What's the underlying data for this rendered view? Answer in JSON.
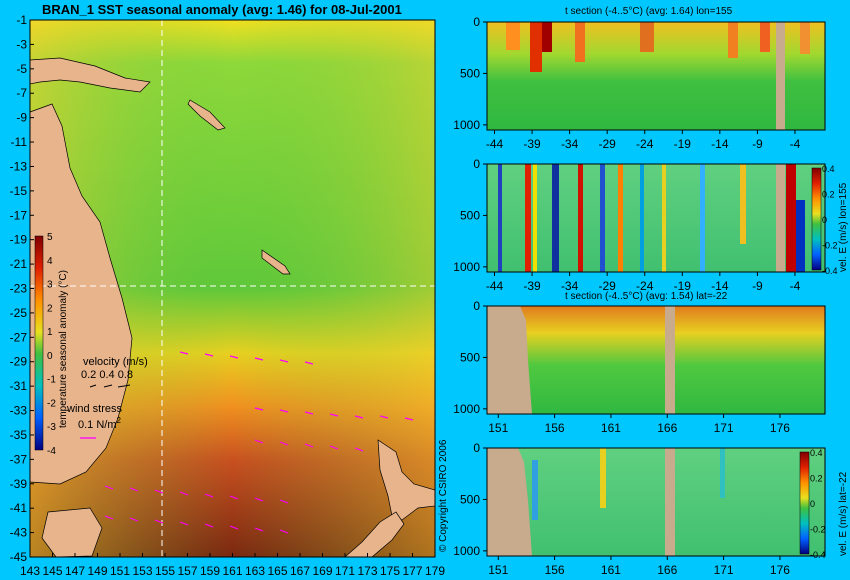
{
  "main_map": {
    "title": "BRAN_1  SST seasonal anomaly (avg: 1.46) for 08-Jul-2001",
    "lat_ticks": [
      "-1",
      "-3",
      "-5",
      "-7",
      "-9",
      "-11",
      "-13",
      "-15",
      "-17",
      "-19",
      "-21",
      "-23",
      "-25",
      "-27",
      "-29",
      "-31",
      "-33",
      "-35",
      "-37",
      "-39",
      "-41",
      "-43",
      "-45"
    ],
    "lon_ticks": [
      "143",
      "145",
      "147",
      "149",
      "151",
      "153",
      "155",
      "157",
      "159",
      "161",
      "163",
      "165",
      "167",
      "169",
      "171",
      "173",
      "175",
      "177",
      "179"
    ],
    "colorbar_ticks": [
      "5",
      "4",
      "3",
      "2",
      "1",
      "0",
      "-1",
      "-2",
      "-3",
      "-4"
    ],
    "colorbar_label": "temperature seasonal anomaly (°C)",
    "velocity_label": "velocity (m/s)",
    "velocity_scale": "0.2 0.4 0.8",
    "wind_label": "wind stress",
    "wind_scale": "0.1 N/m",
    "wind_scale_sup": "2",
    "copyright": "© Copyright CSIRO 2006"
  },
  "panels": {
    "p1": {
      "title": "t section (-4..5°C) (avg: 1.64) lon=155",
      "x_ticks": [
        "-44",
        "-39",
        "-34",
        "-29",
        "-24",
        "-19",
        "-14",
        "-9",
        "-4"
      ],
      "y_ticks": [
        "0",
        "500",
        "1000"
      ]
    },
    "p2": {
      "title": "",
      "x_ticks": [
        "-44",
        "-39",
        "-34",
        "-29",
        "-24",
        "-19",
        "-14",
        "-9",
        "-4"
      ],
      "y_ticks": [
        "0",
        "500",
        "1000"
      ],
      "cb_label": "vel. E (m/s) lon=155",
      "cb_ticks": [
        "0.4",
        "0.2",
        "0",
        "-0.2",
        "-0.4"
      ]
    },
    "p3": {
      "title": "t section (-4..5°C) (avg: 1.54) lat=-22",
      "x_ticks": [
        "151",
        "156",
        "161",
        "166",
        "171",
        "176"
      ],
      "y_ticks": [
        "0",
        "500",
        "1000"
      ]
    },
    "p4": {
      "title": "",
      "x_ticks": [
        "151",
        "156",
        "161",
        "166",
        "171",
        "176"
      ],
      "y_ticks": [
        "0",
        "500",
        "1000"
      ],
      "cb_label": "vel. E (m/s) lat=-22",
      "cb_ticks": [
        "0.4",
        "0.2",
        "0",
        "-0.2",
        "-0.4"
      ]
    }
  },
  "colors": {
    "background": "#00c8ff",
    "land": "#e8b48c",
    "section_land": "#c8aa8c",
    "marker": "#ffffff",
    "vector": "#ff00ff"
  },
  "chart_data": [
    {
      "type": "heatmap",
      "title": "BRAN_1  SST seasonal anomaly (avg: 1.46) for 08-Jul-2001",
      "variable": "temperature seasonal anomaly (°C)",
      "xlabel": "",
      "ylabel": "",
      "xlim": [
        143,
        179
      ],
      "ylim": [
        -45,
        -1
      ],
      "clim": [
        -4,
        5
      ],
      "average": 1.46,
      "date": "08-Jul-2001",
      "section_markers": {
        "lon": 155,
        "lat": -22
      }
    },
    {
      "type": "heatmap",
      "title": "t section (-4..5°C) (avg: 1.64) lon=155",
      "xlim": [
        -45,
        0
      ],
      "ylim": [
        1050,
        0
      ],
      "clim": [
        -4,
        5
      ],
      "average": 1.64
    },
    {
      "type": "heatmap",
      "title": "",
      "variable": "vel. E (m/s) lon=155",
      "xlim": [
        -45,
        0
      ],
      "ylim": [
        1050,
        0
      ],
      "clim": [
        -0.4,
        0.4
      ]
    },
    {
      "type": "heatmap",
      "title": "t section (-4..5°C) (avg: 1.54) lat=-22",
      "xlim": [
        150,
        180
      ],
      "ylim": [
        1050,
        0
      ],
      "clim": [
        -4,
        5
      ],
      "average": 1.54
    },
    {
      "type": "heatmap",
      "title": "",
      "variable": "vel. E (m/s) lat=-22",
      "xlim": [
        150,
        180
      ],
      "ylim": [
        1050,
        0
      ],
      "clim": [
        -0.4,
        0.4
      ]
    }
  ]
}
